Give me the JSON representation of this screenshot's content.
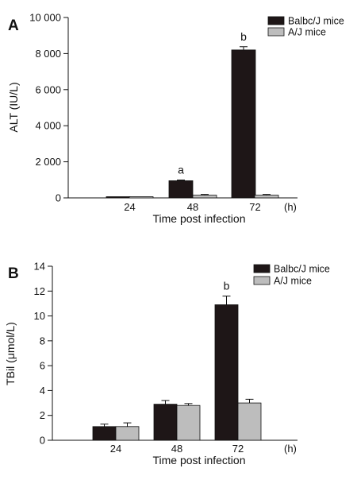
{
  "chart_data": [
    {
      "panel": "A",
      "type": "bar",
      "categories": [
        "24",
        "48",
        "72"
      ],
      "xlabel": "Time post infection",
      "x_unit": "(h)",
      "ylabel": "ALT (IU/L)",
      "ylim": [
        0,
        10000
      ],
      "yticks": [
        0,
        2000,
        4000,
        6000,
        8000,
        10000
      ],
      "ytick_labels": [
        "0",
        "2 000",
        "4 000",
        "6 000",
        "8 000",
        "10 000"
      ],
      "legend_position": "top-right",
      "grid": false,
      "series": [
        {
          "name": "Balbc/J mice",
          "color": "#1e1617",
          "values": [
            40,
            950,
            8200
          ],
          "errors": [
            0,
            40,
            180
          ],
          "labels": [
            "",
            "a",
            "b"
          ]
        },
        {
          "name": "A/J mice",
          "color": "#bdbdbd",
          "values": [
            30,
            150,
            150
          ],
          "errors": [
            0,
            40,
            40
          ],
          "labels": [
            "",
            "",
            ""
          ]
        }
      ]
    },
    {
      "panel": "B",
      "type": "bar",
      "categories": [
        "24",
        "48",
        "72"
      ],
      "xlabel": "Time post infection",
      "x_unit": "(h)",
      "ylabel": "TBil (μmol/L)",
      "ylim": [
        0,
        14
      ],
      "yticks": [
        0,
        2,
        4,
        6,
        8,
        10,
        12,
        14
      ],
      "ytick_labels": [
        "0",
        "2",
        "4",
        "6",
        "8",
        "10",
        "12",
        "14"
      ],
      "legend_position": "top-right",
      "grid": false,
      "series": [
        {
          "name": "Balbc/J mice",
          "color": "#1e1617",
          "values": [
            1.1,
            2.9,
            10.9
          ],
          "errors": [
            0.2,
            0.3,
            0.7
          ],
          "labels": [
            "",
            "",
            "b"
          ]
        },
        {
          "name": "A/J mice",
          "color": "#bdbdbd",
          "values": [
            1.1,
            2.8,
            3.0
          ],
          "errors": [
            0.3,
            0.15,
            0.3
          ],
          "labels": [
            "",
            "",
            ""
          ]
        }
      ]
    }
  ]
}
